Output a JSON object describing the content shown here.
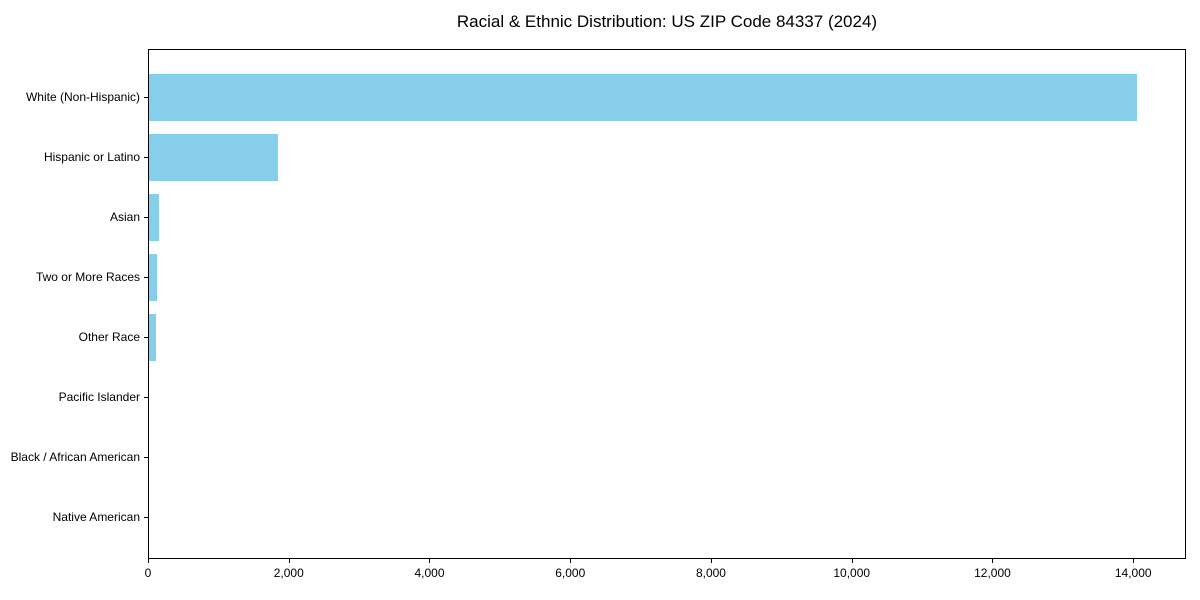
{
  "title": "Racial & Ethnic Distribution: US ZIP Code 84337 (2024)",
  "colors": {
    "bar": "#87CEEB",
    "axis": "#000000",
    "background": "#FFFFFF",
    "text": "#000000"
  },
  "chart_data": {
    "type": "bar",
    "orientation": "horizontal",
    "title": "Racial & Ethnic Distribution: US ZIP Code 84337 (2024)",
    "categories": [
      "White (Non-Hispanic)",
      "Hispanic or Latino",
      "Asian",
      "Two or More Races",
      "Other Race",
      "Pacific Islander",
      "Black / African American",
      "Native American"
    ],
    "values": [
      14040,
      1830,
      140,
      115,
      100,
      0,
      0,
      0
    ],
    "xlabel": "",
    "ylabel": "",
    "x_ticks": [
      0,
      2000,
      4000,
      6000,
      8000,
      10000,
      12000,
      14000
    ],
    "x_tick_labels": [
      "0",
      "2,000",
      "4,000",
      "6,000",
      "8,000",
      "10,000",
      "12,000",
      "14,000"
    ],
    "xlim": [
      0,
      14750
    ],
    "grid": false,
    "legend": false,
    "bar_color": "#87CEEB"
  }
}
